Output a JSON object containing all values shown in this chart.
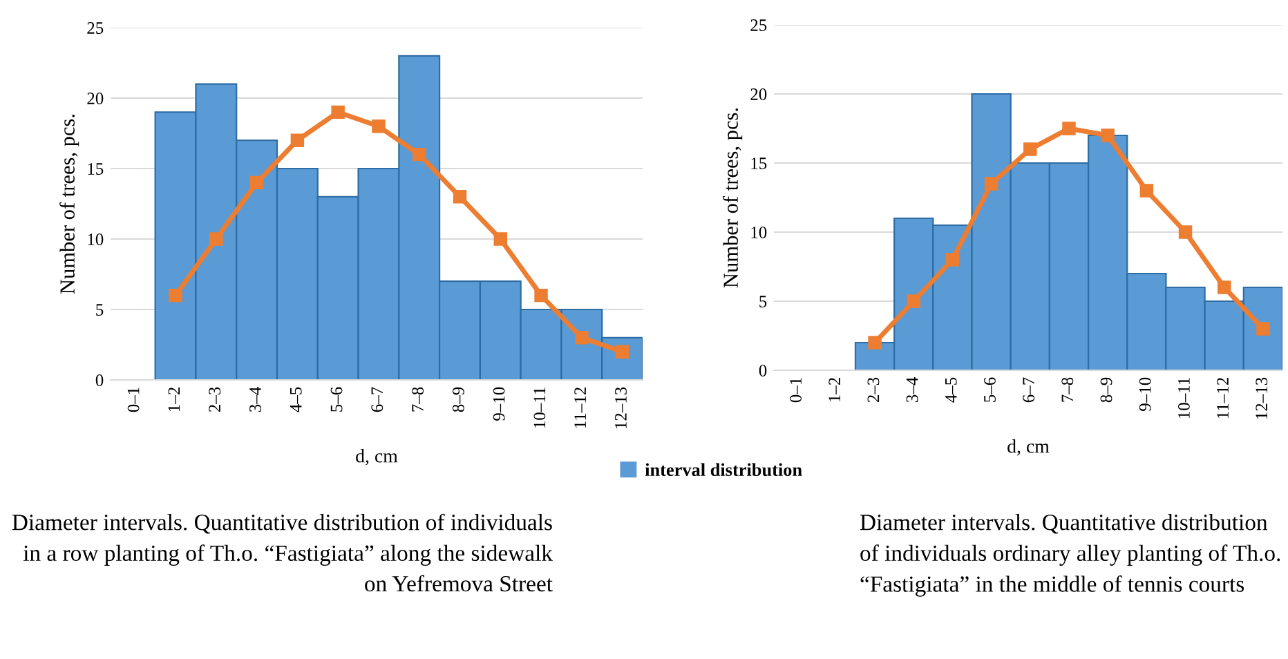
{
  "chart_data": [
    {
      "type": "bar",
      "categories": [
        "0–1",
        "1–2",
        "2–3",
        "3–4",
        "4–5",
        "5–6",
        "6–7",
        "7–8",
        "8–9",
        "9–10",
        "10–11",
        "11–12",
        "12–13"
      ],
      "xlabel": "d, cm",
      "ylabel": "Number of trees, pcs.",
      "ylim": [
        0,
        25
      ],
      "yticks": [
        0,
        5,
        10,
        15,
        20,
        25
      ],
      "grid": "y",
      "legend": "bottom right",
      "series": [
        {
          "name": "interval distribution",
          "color": "#5b9bd5",
          "values": [
            null,
            19,
            21,
            17,
            15,
            13,
            15,
            23,
            7,
            7,
            5,
            5,
            3
          ]
        },
        {
          "type": "line",
          "color": "#ed7d31",
          "marker": "square",
          "values": [
            null,
            6,
            10,
            14,
            17,
            19,
            18,
            16,
            13,
            10,
            6,
            3,
            2
          ]
        }
      ],
      "annotations": [
        "Diameter intervals. Quantitative distribution of individuals in a row planting of Th.o. “Fastigiata” along the sidewalk on Yefremova Street"
      ]
    },
    {
      "type": "bar",
      "categories": [
        "0–1",
        "1–2",
        "2–3",
        "3–4",
        "4–5",
        "5–6",
        "6–7",
        "7–8",
        "8–9",
        "9–10",
        "10–11",
        "11–12",
        "12–13"
      ],
      "xlabel": "d, cm",
      "ylabel": "Number of trees, pcs.",
      "ylim": [
        0,
        25
      ],
      "yticks": [
        0,
        5,
        10,
        15,
        20,
        25
      ],
      "grid": "y",
      "series": [
        {
          "color": "#5b9bd5",
          "values": [
            null,
            null,
            2,
            11,
            10.5,
            20,
            15,
            15,
            17,
            7,
            6,
            5,
            6
          ]
        },
        {
          "type": "line",
          "color": "#ed7d31",
          "marker": "square",
          "values": [
            null,
            null,
            2,
            5,
            8,
            13.5,
            16,
            17.5,
            17,
            13,
            10,
            6,
            3
          ]
        }
      ],
      "annotations": [
        "Diameter intervals. Quantitative distribution of individuals ordinary alley planting of Th.o. “Fastigiata” in the middle of tennis courts"
      ]
    }
  ]
}
